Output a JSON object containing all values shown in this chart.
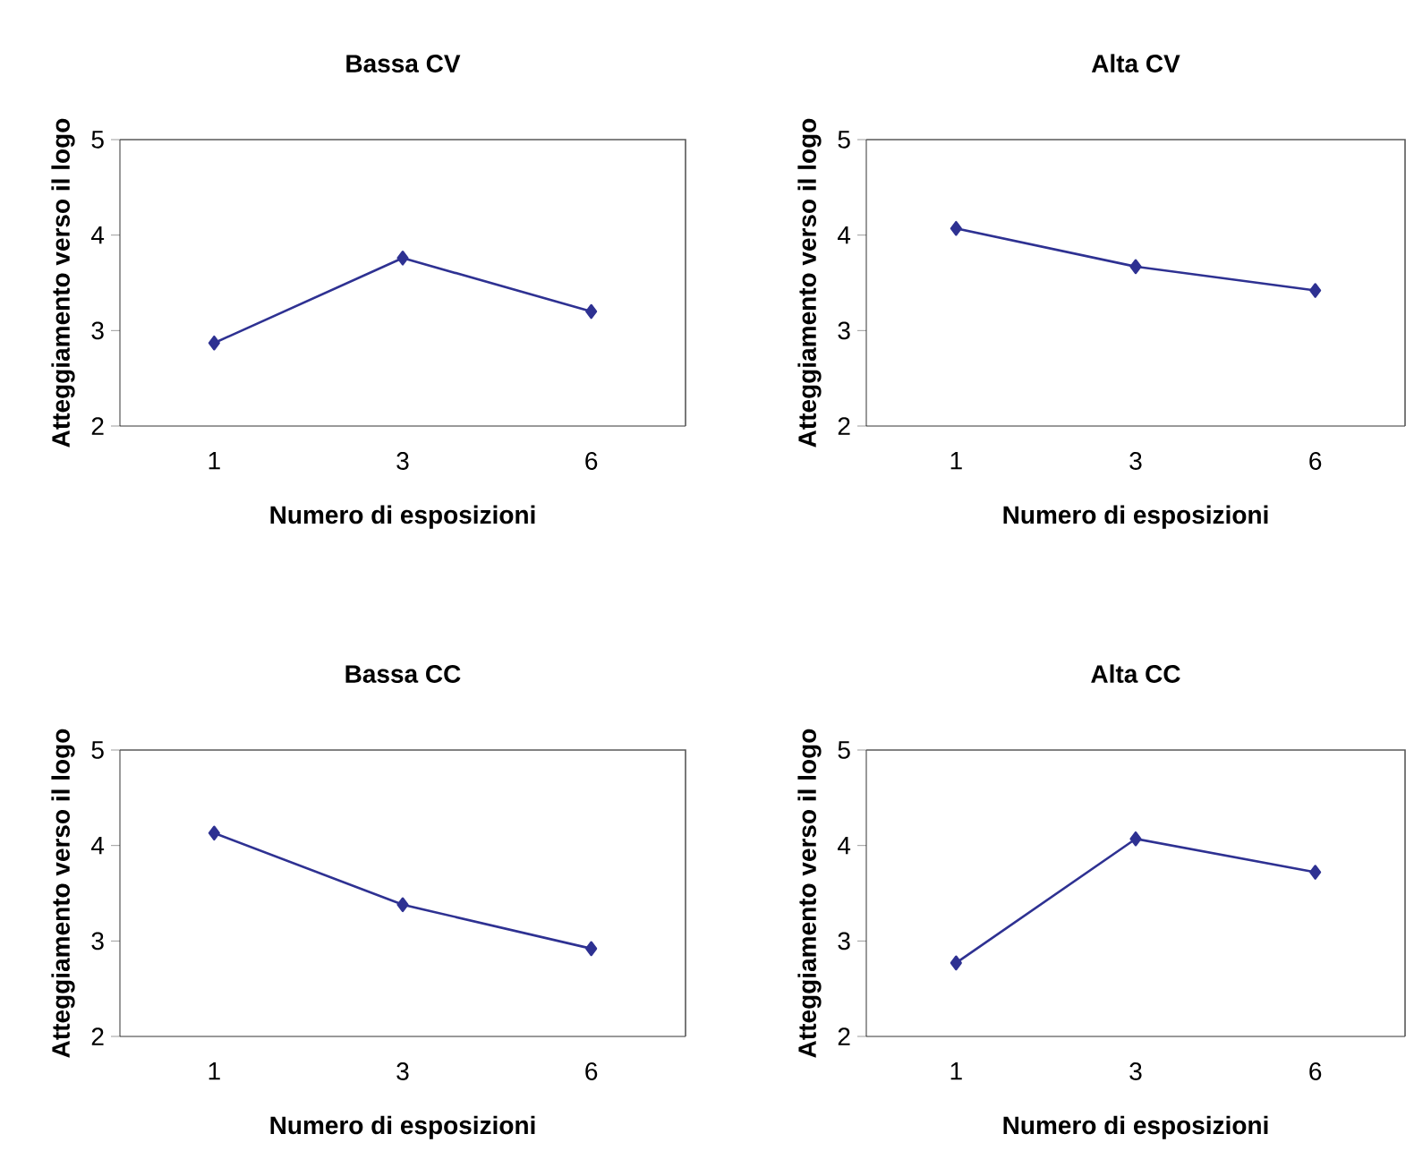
{
  "chart_data": [
    {
      "type": "line",
      "title": "Bassa CV",
      "xlabel": "Numero di esposizioni",
      "ylabel": "Atteggiamento verso il logo",
      "categories": [
        "1",
        "3",
        "6"
      ],
      "ylim": [
        2,
        5
      ],
      "yticks": [
        2,
        3,
        4,
        5
      ],
      "marker": "diamond",
      "series": [
        {
          "color": "#2e3192",
          "values": [
            2.87,
            3.76,
            3.2
          ]
        }
      ]
    },
    {
      "type": "line",
      "title": "Alta CV",
      "xlabel": "Numero di esposizioni",
      "ylabel": "Atteggiamento verso il logo",
      "categories": [
        "1",
        "3",
        "6"
      ],
      "ylim": [
        2,
        5
      ],
      "yticks": [
        2,
        3,
        4,
        5
      ],
      "marker": "diamond",
      "series": [
        {
          "color": "#2e3192",
          "values": [
            4.07,
            3.67,
            3.42
          ]
        }
      ]
    },
    {
      "type": "line",
      "title": "Bassa CC",
      "xlabel": "Numero di esposizioni",
      "ylabel": "Atteggiamento verso il logo",
      "categories": [
        "1",
        "3",
        "6"
      ],
      "ylim": [
        2,
        5
      ],
      "yticks": [
        2,
        3,
        4,
        5
      ],
      "marker": "diamond",
      "series": [
        {
          "color": "#2e3192",
          "values": [
            4.13,
            3.38,
            2.92
          ]
        }
      ]
    },
    {
      "type": "line",
      "title": "Alta CC",
      "xlabel": "Numero di esposizioni",
      "ylabel": "Atteggiamento verso il logo",
      "categories": [
        "1",
        "3",
        "6"
      ],
      "ylim": [
        2,
        5
      ],
      "yticks": [
        2,
        3,
        4,
        5
      ],
      "marker": "diamond",
      "series": [
        {
          "color": "#2e3192",
          "values": [
            2.77,
            4.07,
            3.72
          ]
        }
      ]
    }
  ]
}
